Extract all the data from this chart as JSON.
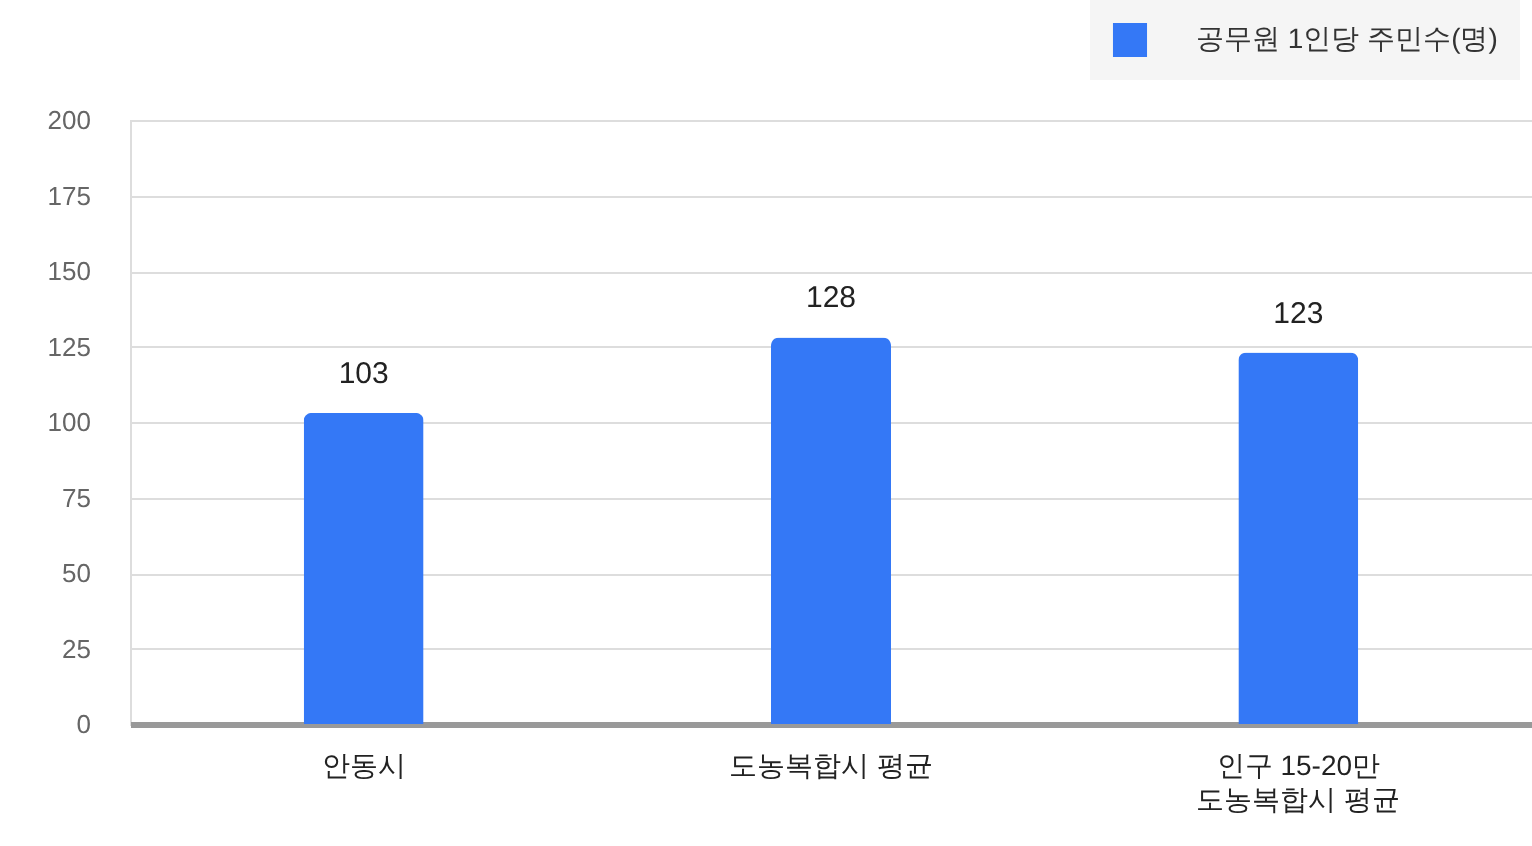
{
  "chart_data": {
    "type": "bar",
    "categories": [
      "안동시",
      "도농복합시 평균",
      "인구 15-20만\n도농복합시 평균"
    ],
    "series": [
      {
        "name": "공무원 1인당 주민수(명)",
        "color": "#3478f6",
        "values": [
          103,
          128,
          123
        ]
      }
    ],
    "ylim": [
      0,
      200
    ],
    "yticks": [
      0,
      25,
      50,
      75,
      100,
      125,
      150,
      175,
      200
    ],
    "grid": "y",
    "legend": "top right",
    "data_labels": true
  }
}
